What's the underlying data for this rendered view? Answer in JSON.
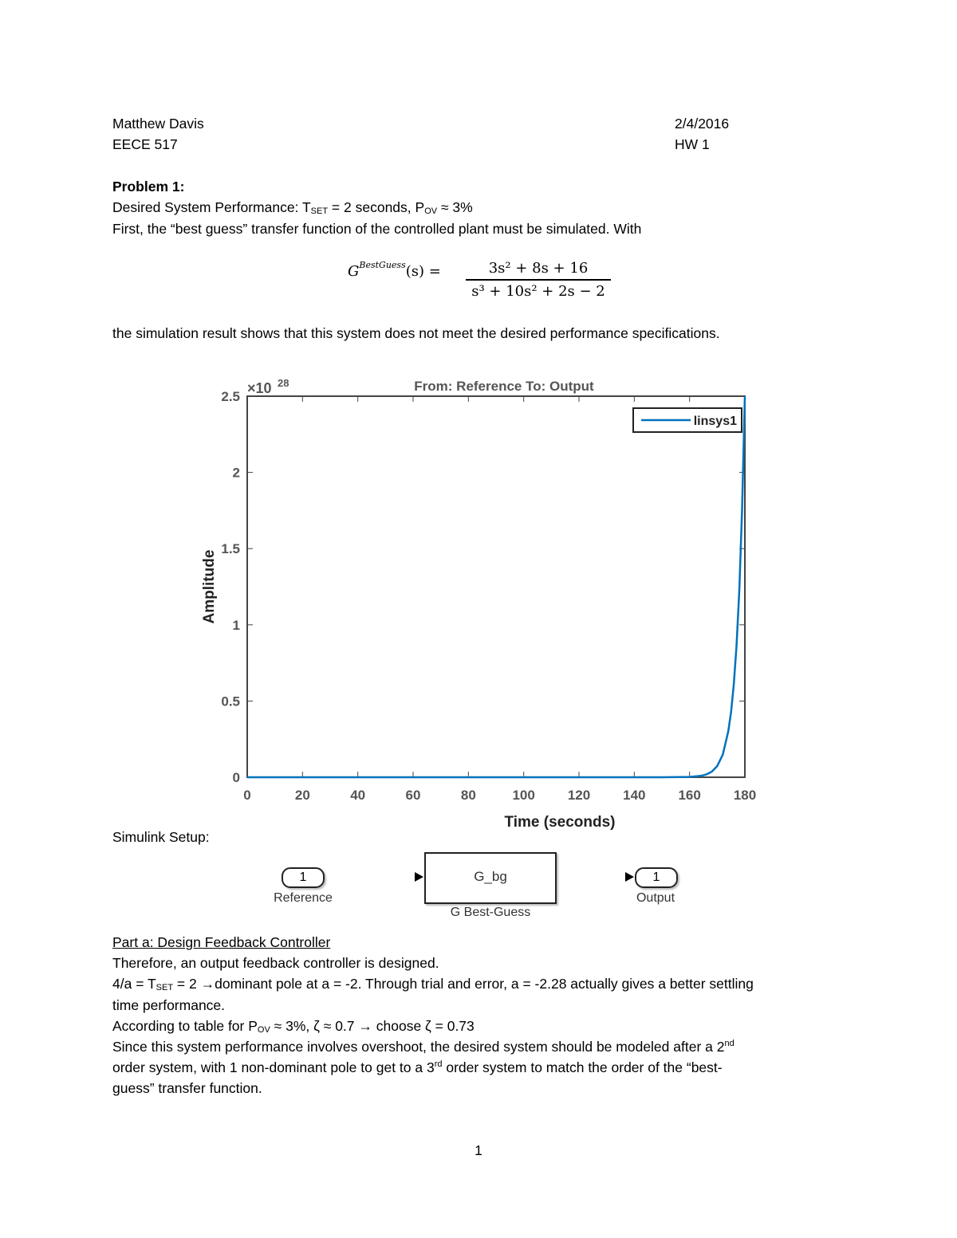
{
  "header": {
    "name": "Matthew Davis",
    "date": "2/4/2016",
    "course": "EECE 517",
    "assignment": "HW 1"
  },
  "problem_title": "Problem 1:",
  "spec": {
    "prefix": "Desired System Performance: T",
    "t_sub": "SET",
    "t_val": " = 2 seconds, P",
    "p_sub": "OV",
    "p_val": " ≈ 3%"
  },
  "intro": "First, the “best guess” transfer function of the controlled plant must be simulated. With",
  "equation": {
    "lhs": "G",
    "sup": "BestGuess",
    "arg": "(s) =",
    "numerator": "3s² + 8s + 16",
    "denominator": "s³ + 10s² + 2s − 2"
  },
  "result_text": "the simulation result shows that this system does not meet the desired performance specifications.",
  "chart_data": {
    "type": "line",
    "title": "From: Reference  To: Output",
    "xlabel": "Time (seconds)",
    "ylabel": "Amplitude",
    "y_multiplier": "×10",
    "y_exponent": "28",
    "xlim": [
      0,
      180
    ],
    "ylim": [
      0,
      2.5
    ],
    "xticks": [
      0,
      20,
      40,
      60,
      80,
      100,
      120,
      140,
      160,
      180
    ],
    "yticks": [
      0,
      0.5,
      1,
      1.5,
      2,
      2.5
    ],
    "ytick_labels": [
      "0",
      "0.5",
      "1",
      "1.5",
      "2",
      "2.5"
    ],
    "legend": "top-right",
    "series": [
      {
        "name": "linsys1",
        "color": "#0072BD",
        "x": [
          0,
          150,
          160,
          164,
          166,
          168,
          170,
          172,
          174,
          175,
          176,
          177,
          178,
          179,
          180
        ],
        "y": [
          0,
          0,
          0.002,
          0.009,
          0.018,
          0.036,
          0.073,
          0.148,
          0.301,
          0.428,
          0.609,
          0.867,
          1.234,
          1.757,
          2.5
        ]
      }
    ]
  },
  "simulink": {
    "heading": "Simulink Setup:",
    "in_port": "1",
    "in_label": "Reference",
    "block": "G_bg",
    "block_label": "G Best-Guess",
    "out_port": "1",
    "out_label": "Output"
  },
  "part_a": {
    "title": "Part a: Design Feedback Controller",
    "line1": "Therefore, an output feedback controller is designed.",
    "line2a": "4/a = T",
    "line2_sub": "SET",
    "line2b": " = 2 →dominant pole at a = -2. Through trial and error, a = -2.28 actually gives a better settling",
    "line3": "time performance.",
    "line4a": "According to table for P",
    "line4_sub": "OV",
    "line4b": " ≈ 3%, ζ ≈ 0.7 → choose ζ = 0.73",
    "line5a": "Since this system performance involves overshoot, the desired system should be modeled after a 2",
    "line5_sup": "nd",
    "line6a": "order system, with 1 non-dominant pole to get to a 3",
    "line6_sup": "rd",
    "line6b": " order system to match the order of the “best-",
    "line7": "guess” transfer function."
  },
  "page_number": "1"
}
